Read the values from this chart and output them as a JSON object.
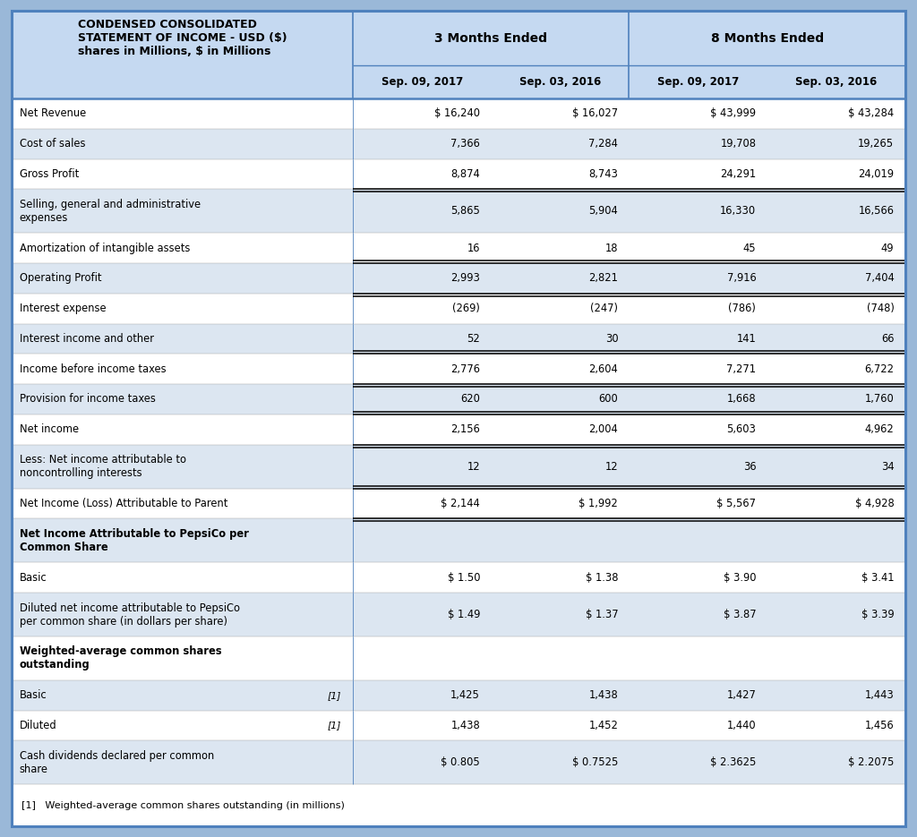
{
  "title_line1": "CONDENSED CONSOLIDATED",
  "title_line2": "STATEMENT OF INCOME - USD ($)",
  "title_line3": "shares in Millions, $ in Millions",
  "col_headers_row1": [
    "3 Months Ended",
    "8 Months Ended"
  ],
  "col_headers_row2": [
    "Sep. 09, 2017",
    "Sep. 03, 2016",
    "Sep. 09, 2017",
    "Sep. 03, 2016"
  ],
  "rows": [
    {
      "label": "Net Revenue",
      "vals": [
        "$ 16,240",
        "$ 16,027",
        "$ 43,999",
        "$ 43,284"
      ],
      "bold": false,
      "note": "",
      "double_top": false,
      "double_bottom": false
    },
    {
      "label": "Cost of sales",
      "vals": [
        "7,366",
        "7,284",
        "19,708",
        "19,265"
      ],
      "bold": false,
      "note": "",
      "double_top": false,
      "double_bottom": false
    },
    {
      "label": "Gross Profit",
      "vals": [
        "8,874",
        "8,743",
        "24,291",
        "24,019"
      ],
      "bold": false,
      "note": "",
      "double_top": false,
      "double_bottom": true
    },
    {
      "label": "Selling, general and administrative\nexpenses",
      "vals": [
        "5,865",
        "5,904",
        "16,330",
        "16,566"
      ],
      "bold": false,
      "note": "",
      "double_top": false,
      "double_bottom": false
    },
    {
      "label": "Amortization of intangible assets",
      "vals": [
        "16",
        "18",
        "45",
        "49"
      ],
      "bold": false,
      "note": "",
      "double_top": false,
      "double_bottom": false
    },
    {
      "label": "Operating Profit",
      "vals": [
        "2,993",
        "2,821",
        "7,916",
        "7,404"
      ],
      "bold": false,
      "note": "",
      "double_top": true,
      "double_bottom": true
    },
    {
      "label": "Interest expense",
      "vals": [
        "(269)",
        "(247)",
        "(786)",
        "(748)"
      ],
      "bold": false,
      "note": "",
      "double_top": false,
      "double_bottom": false
    },
    {
      "label": "Interest income and other",
      "vals": [
        "52",
        "30",
        "141",
        "66"
      ],
      "bold": false,
      "note": "",
      "double_top": false,
      "double_bottom": false
    },
    {
      "label": "Income before income taxes",
      "vals": [
        "2,776",
        "2,604",
        "7,271",
        "6,722"
      ],
      "bold": false,
      "note": "",
      "double_top": true,
      "double_bottom": true
    },
    {
      "label": "Provision for income taxes",
      "vals": [
        "620",
        "600",
        "1,668",
        "1,760"
      ],
      "bold": false,
      "note": "",
      "double_top": false,
      "double_bottom": false
    },
    {
      "label": "Net income",
      "vals": [
        "2,156",
        "2,004",
        "5,603",
        "4,962"
      ],
      "bold": false,
      "note": "",
      "double_top": true,
      "double_bottom": true
    },
    {
      "label": "Less: Net income attributable to\nnoncontrolling interests",
      "vals": [
        "12",
        "12",
        "36",
        "34"
      ],
      "bold": false,
      "note": "",
      "double_top": false,
      "double_bottom": false
    },
    {
      "label": "Net Income (Loss) Attributable to Parent",
      "vals": [
        "$ 2,144",
        "$ 1,992",
        "$ 5,567",
        "$ 4,928"
      ],
      "bold": false,
      "note": "",
      "double_top": true,
      "double_bottom": true
    },
    {
      "label": "Net Income Attributable to PepsiCo per\nCommon Share",
      "vals": [
        "",
        "",
        "",
        ""
      ],
      "bold": true,
      "note": "",
      "double_top": false,
      "double_bottom": false
    },
    {
      "label": "Basic",
      "vals": [
        "$ 1.50",
        "$ 1.38",
        "$ 3.90",
        "$ 3.41"
      ],
      "bold": false,
      "note": "",
      "double_top": false,
      "double_bottom": false
    },
    {
      "label": "Diluted net income attributable to PepsiCo\nper common share (in dollars per share)",
      "vals": [
        "$ 1.49",
        "$ 1.37",
        "$ 3.87",
        "$ 3.39"
      ],
      "bold": false,
      "note": "",
      "double_top": false,
      "double_bottom": false
    },
    {
      "label": "Weighted-average common shares\noutstanding",
      "vals": [
        "",
        "",
        "",
        ""
      ],
      "bold": true,
      "note": "",
      "double_top": false,
      "double_bottom": false
    },
    {
      "label": "Basic",
      "vals": [
        "1,425",
        "1,438",
        "1,427",
        "1,443"
      ],
      "bold": false,
      "note": "[1]",
      "double_top": false,
      "double_bottom": false
    },
    {
      "label": "Diluted",
      "vals": [
        "1,438",
        "1,452",
        "1,440",
        "1,456"
      ],
      "bold": false,
      "note": "[1]",
      "double_top": false,
      "double_bottom": false
    },
    {
      "label": "Cash dividends declared per common\nshare",
      "vals": [
        "$ 0.805",
        "$ 0.7525",
        "$ 2.3625",
        "$ 2.2075"
      ],
      "bold": false,
      "note": "",
      "double_top": false,
      "double_bottom": false
    }
  ],
  "footnote": "[1]   Weighted-average common shares outstanding (in millions)",
  "bg_color_header": "#c5d9f1",
  "bg_color_row_light": "#dce6f1",
  "bg_color_row_white": "#ffffff",
  "bg_color_outer": "#9ab8d8",
  "text_color": "#000000",
  "border_color": "#4f81bd",
  "row_colors": [
    "#ffffff",
    "#dce6f1",
    "#ffffff",
    "#dce6f1",
    "#ffffff",
    "#dce6f1",
    "#ffffff",
    "#dce6f1",
    "#ffffff",
    "#dce6f1",
    "#ffffff",
    "#dce6f1",
    "#ffffff",
    "#dce6f1",
    "#ffffff",
    "#dce6f1",
    "#ffffff",
    "#dce6f1",
    "#ffffff",
    "#dce6f1"
  ]
}
